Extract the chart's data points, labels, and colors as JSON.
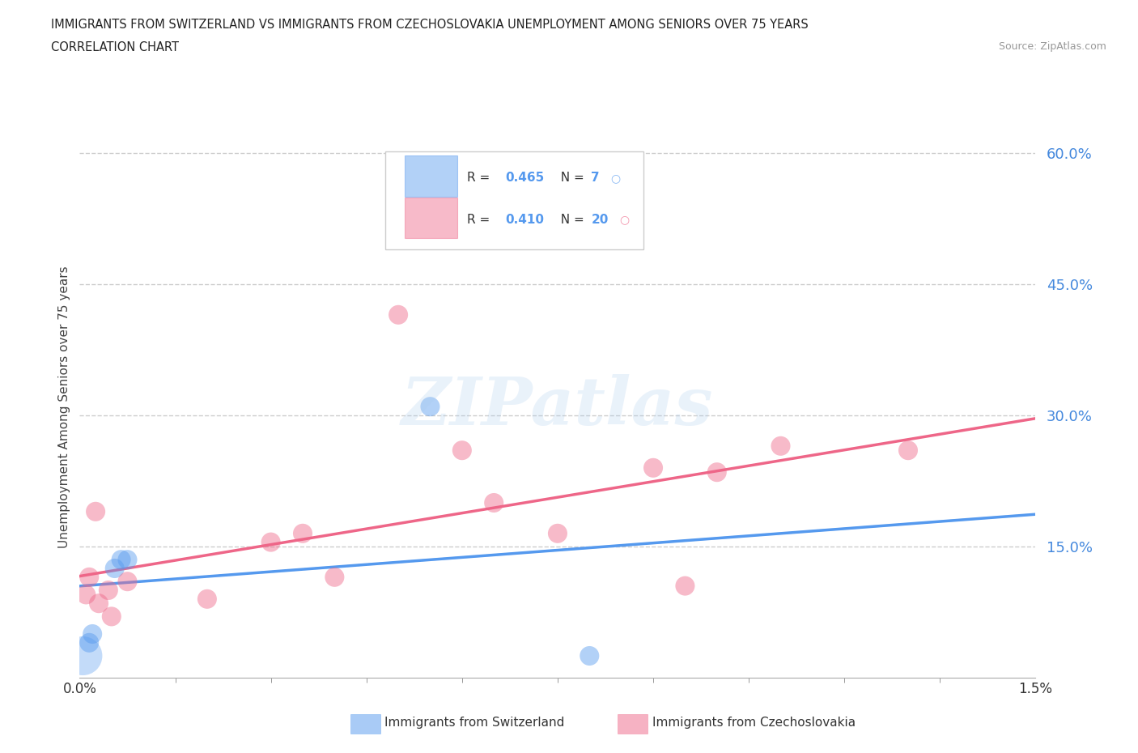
{
  "title_line1": "IMMIGRANTS FROM SWITZERLAND VS IMMIGRANTS FROM CZECHOSLOVAKIA UNEMPLOYMENT AMONG SENIORS OVER 75 YEARS",
  "title_line2": "CORRELATION CHART",
  "source": "Source: ZipAtlas.com",
  "ylabel": "Unemployment Among Seniors over 75 years",
  "xlim": [
    0.0,
    0.015
  ],
  "ylim": [
    0.0,
    0.62
  ],
  "yticks": [
    0.15,
    0.3,
    0.45,
    0.6
  ],
  "ytick_labels": [
    "15.0%",
    "30.0%",
    "45.0%",
    "60.0%"
  ],
  "xtick_labels": [
    "0.0%",
    "1.5%"
  ],
  "switzerland_color": "#5599ee",
  "czechoslovakia_color": "#ee6688",
  "switzerland_label": "Immigrants from Switzerland",
  "czechoslovakia_label": "Immigrants from Czechoslovakia",
  "R_switzerland": 0.465,
  "N_switzerland": 7,
  "R_czechoslovakia": 0.41,
  "N_czechoslovakia": 20,
  "switz_x": [
    0.00015,
    0.0002,
    0.00055,
    0.00065,
    0.00075,
    0.0055,
    0.008
  ],
  "switz_y": [
    0.04,
    0.05,
    0.125,
    0.135,
    0.135,
    0.31,
    0.025
  ],
  "czech_x": [
    0.0001,
    0.00015,
    0.00025,
    0.0003,
    0.00045,
    0.0005,
    0.00075,
    0.002,
    0.003,
    0.0035,
    0.004,
    0.005,
    0.006,
    0.0065,
    0.0075,
    0.009,
    0.0095,
    0.01,
    0.011,
    0.013
  ],
  "czech_y": [
    0.095,
    0.115,
    0.19,
    0.085,
    0.1,
    0.07,
    0.11,
    0.09,
    0.155,
    0.165,
    0.115,
    0.415,
    0.26,
    0.2,
    0.165,
    0.24,
    0.105,
    0.235,
    0.265,
    0.26
  ],
  "watermark_text": "ZIPatlas",
  "watermark_color": "#aaccee",
  "grid_color": "#cccccc",
  "title_color": "#222222",
  "source_color": "#999999",
  "ytick_color": "#4488dd",
  "xtick_color": "#333333"
}
